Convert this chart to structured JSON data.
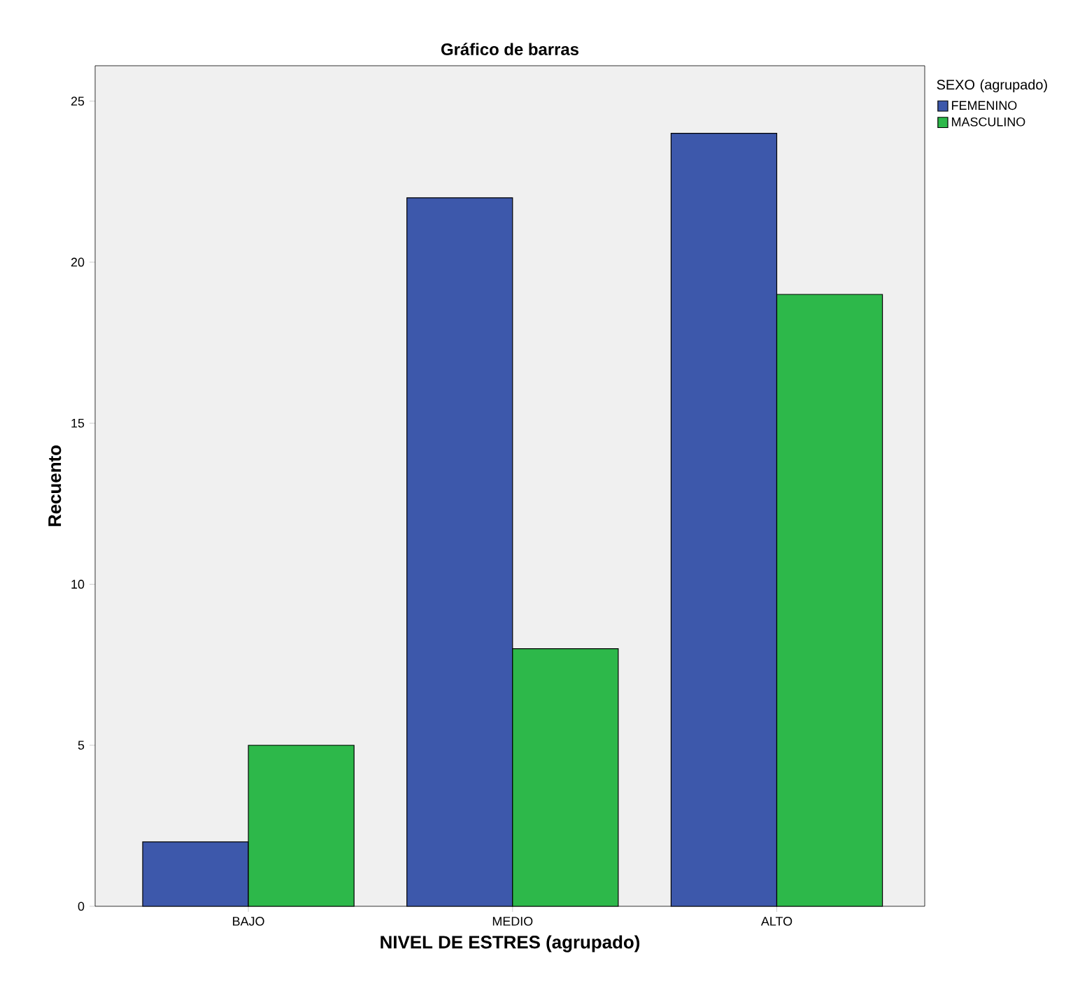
{
  "chart_data": {
    "type": "bar",
    "title": "Gráfico de barras",
    "xlabel": "NIVEL DE ESTRES (agrupado)",
    "ylabel": "Recuento",
    "legend_title": "SEXO (agrupado)",
    "categories": [
      "BAJO",
      "MEDIO",
      "ALTO"
    ],
    "series": [
      {
        "name": "FEMENINO",
        "color": "#3d58ab",
        "values": [
          2,
          22,
          24
        ]
      },
      {
        "name": "MASCULINO",
        "color": "#2db84a",
        "values": [
          5,
          8,
          19
        ]
      }
    ],
    "ylim": [
      0,
      26.1
    ],
    "yticks": [
      0,
      5,
      10,
      15,
      20,
      25
    ],
    "grid": false,
    "legend": "right"
  }
}
